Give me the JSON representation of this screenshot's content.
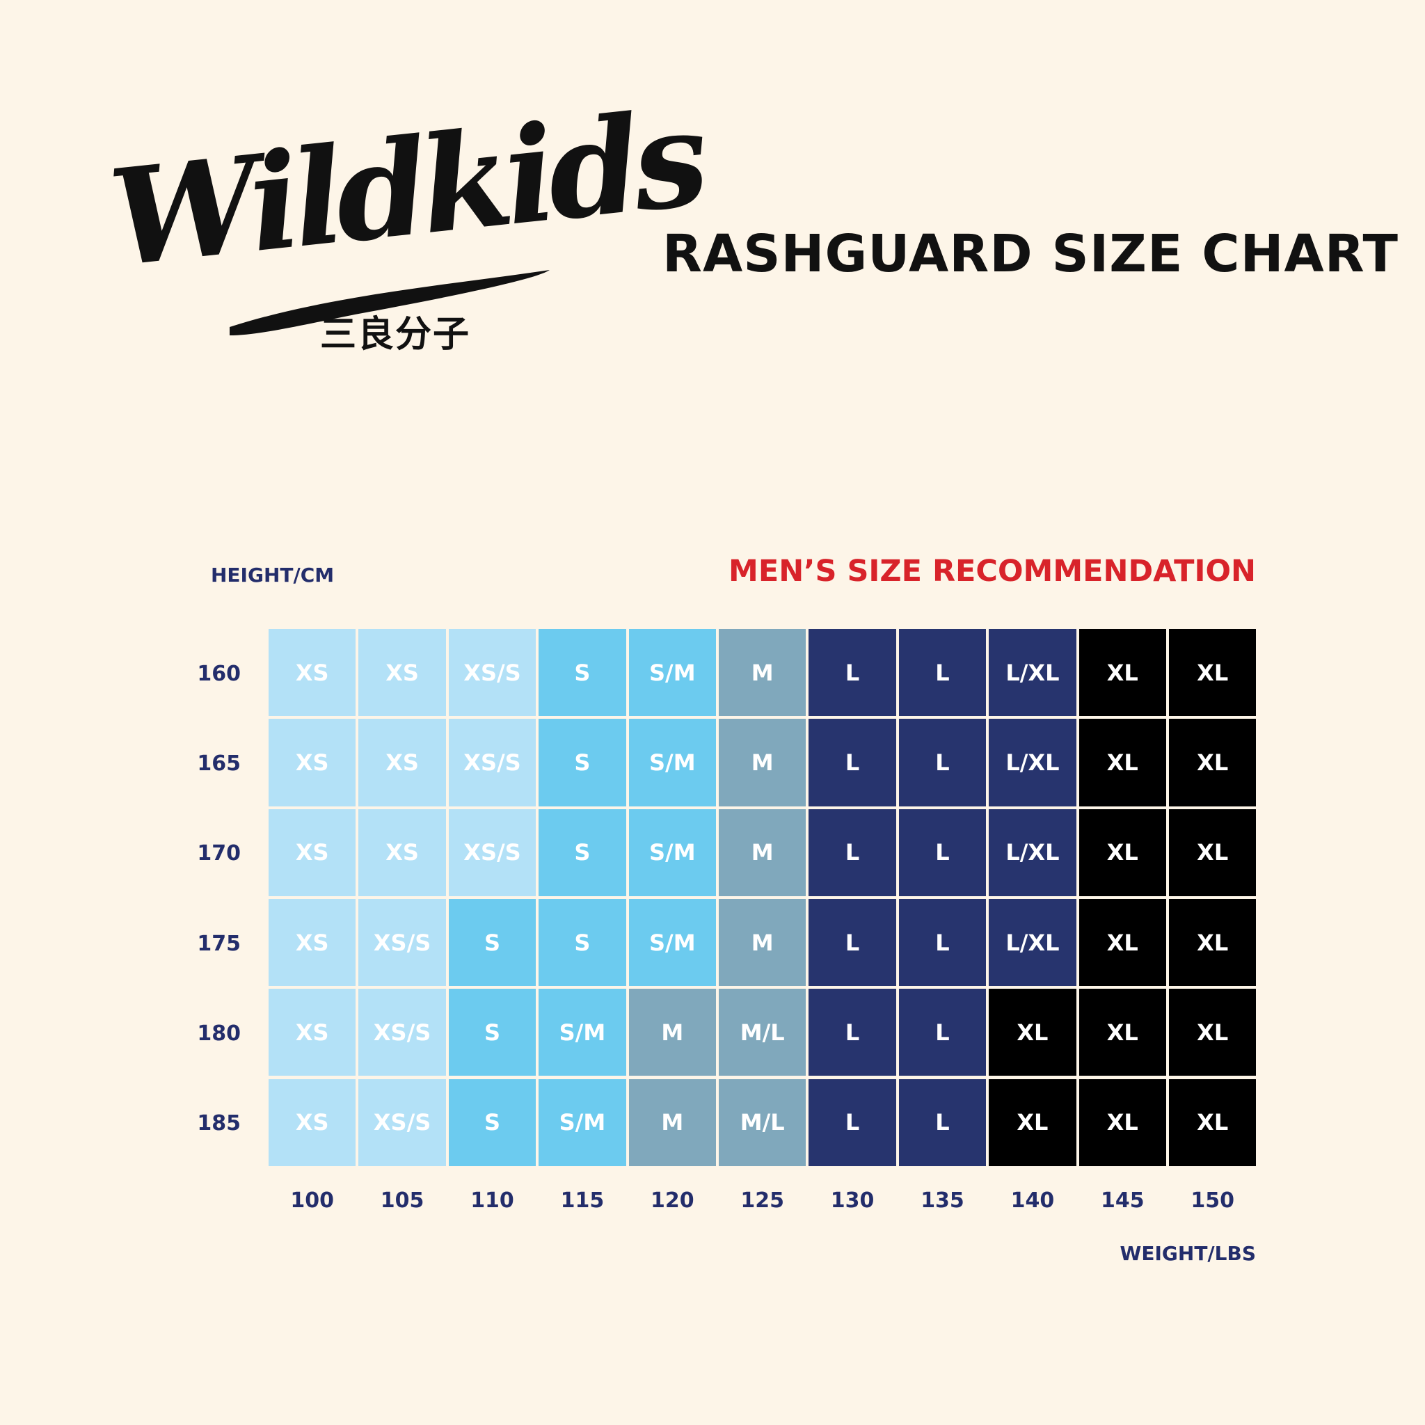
{
  "brand": {
    "logo_text": "Wildkids",
    "logo_subtext": "三良分子"
  },
  "title": "RASHGUARD SIZE CHART",
  "colors": {
    "background": "#fdf5e8",
    "xs": "#b3e1f7",
    "xs_s": "#b3e1f7",
    "s": "#6ccbef",
    "s_m": "#6ccbef",
    "m": "#80a8bc",
    "m_l": "#80a8bc",
    "l": "#27346e",
    "l_xl": "#27346e",
    "xl": "#000000",
    "label": "#232d6b",
    "accent": "#d8232a"
  },
  "chart_data": {
    "type": "heatmap",
    "title": "MEN’S SIZE RECOMMENDATION",
    "xlabel": "WEIGHT/LBS",
    "ylabel": "HEIGHT/CM",
    "x": [
      "100",
      "105",
      "110",
      "115",
      "120",
      "125",
      "130",
      "135",
      "140",
      "145",
      "150"
    ],
    "y": [
      "160",
      "165",
      "170",
      "175",
      "180",
      "185"
    ],
    "values": [
      [
        "XS",
        "XS",
        "XS/S",
        "S",
        "S/M",
        "M",
        "L",
        "L",
        "L/XL",
        "XL",
        "XL"
      ],
      [
        "XS",
        "XS",
        "XS/S",
        "S",
        "S/M",
        "M",
        "L",
        "L",
        "L/XL",
        "XL",
        "XL"
      ],
      [
        "XS",
        "XS",
        "XS/S",
        "S",
        "S/M",
        "M",
        "L",
        "L",
        "L/XL",
        "XL",
        "XL"
      ],
      [
        "XS",
        "XS/S",
        "S",
        "S",
        "S/M",
        "M",
        "L",
        "L",
        "L/XL",
        "XL",
        "XL"
      ],
      [
        "XS",
        "XS/S",
        "S",
        "S/M",
        "M",
        "M/L",
        "L",
        "L",
        "XL",
        "XL",
        "XL"
      ],
      [
        "XS",
        "XS/S",
        "S",
        "S/M",
        "M",
        "M/L",
        "L",
        "L",
        "XL",
        "XL",
        "XL"
      ]
    ]
  }
}
